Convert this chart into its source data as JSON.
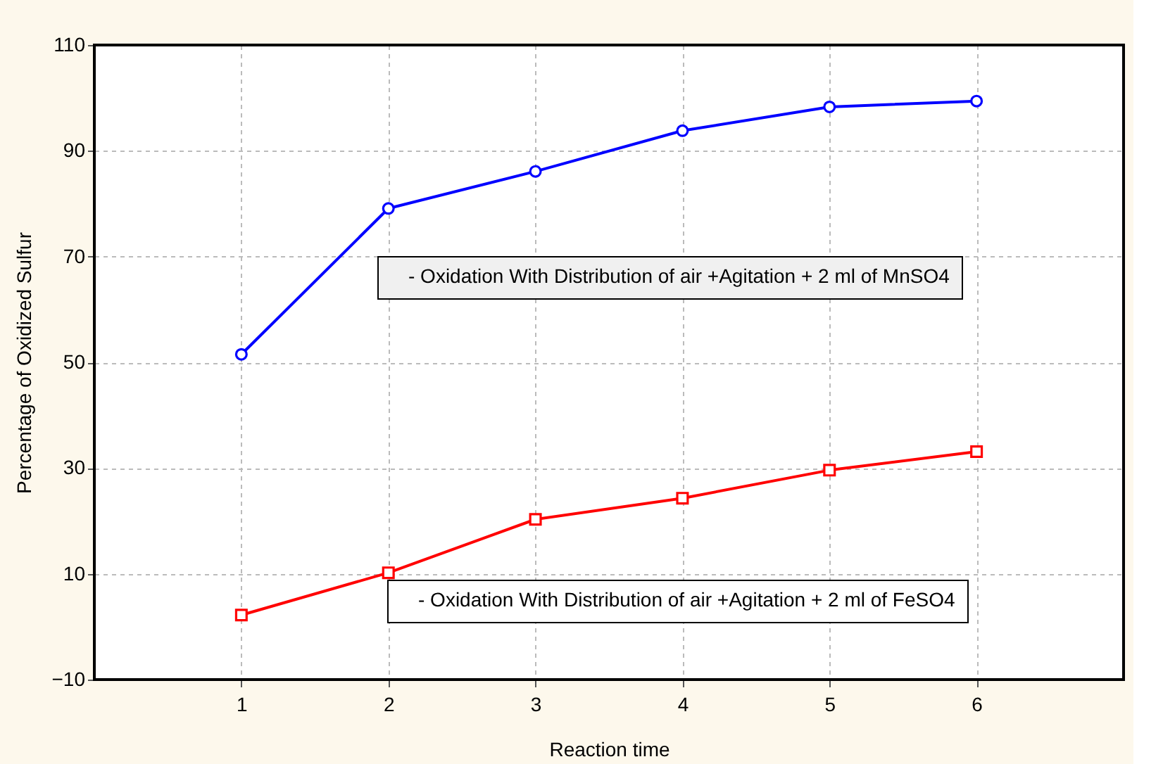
{
  "chart_data": {
    "type": "line",
    "xlabel": "Reaction time",
    "ylabel": "Percentage of Oxidized Sulfur",
    "x": [
      1,
      2,
      3,
      4,
      5,
      6
    ],
    "series": [
      {
        "name": "- Oxidation With Distribution of air +Agitation + 2 ml of MnSO4",
        "color": "#0000ff",
        "marker": "circle",
        "values": [
          51.5,
          79.1,
          86.1,
          93.8,
          98.3,
          99.4
        ]
      },
      {
        "name": "- Oxidation With Distribution of air +Agitation + 2 ml of FeSO4",
        "color": "#ff0000",
        "marker": "square",
        "values": [
          2.2,
          10.2,
          20.3,
          24.3,
          29.6,
          33.1
        ]
      }
    ],
    "xlim": [
      0,
      7
    ],
    "xticks": [
      1,
      2,
      3,
      4,
      5,
      6
    ],
    "ylim": [
      -10,
      110
    ],
    "yticks": [
      -10,
      10,
      30,
      50,
      70,
      90,
      110
    ],
    "grid": true,
    "line_style": "solid"
  }
}
